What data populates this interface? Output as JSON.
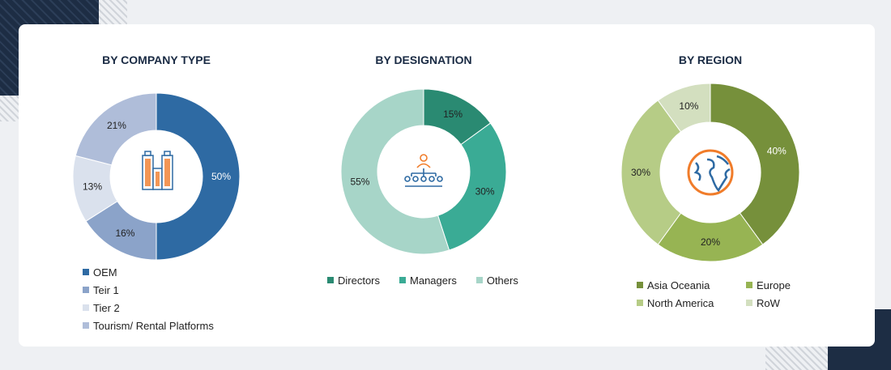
{
  "chart_data": [
    {
      "type": "pie",
      "title": "BY COMPANY TYPE",
      "icon": "buildings-icon",
      "categories": [
        "OEM",
        "Teir 1",
        "Tier 2",
        "Tourism/ Rental Platforms"
      ],
      "values": [
        50,
        16,
        13,
        21
      ],
      "labels": [
        "50%",
        "16%",
        "13%",
        "21%"
      ],
      "colors": [
        "#2e6aa3",
        "#8ba3c9",
        "#dae1ed",
        "#afbdd9"
      ],
      "label_colors": [
        "#ffffff",
        "#222222",
        "#222222",
        "#222222"
      ],
      "legend": "bottom"
    },
    {
      "type": "pie",
      "title": "BY DESIGNATION",
      "icon": "org-chart-people-icon",
      "categories": [
        "Directors",
        "Managers",
        "Others"
      ],
      "values": [
        15,
        30,
        55
      ],
      "labels": [
        "15%",
        "30%",
        "55%"
      ],
      "colors": [
        "#2a8a72",
        "#3aab95",
        "#a7d5c8"
      ],
      "label_colors": [
        "#222222",
        "#222222",
        "#222222"
      ],
      "legend": "bottom"
    },
    {
      "type": "pie",
      "title": "BY REGION",
      "icon": "globe-icon",
      "categories": [
        "Asia Oceania",
        "Europe",
        "North America",
        "RoW"
      ],
      "values": [
        40,
        20,
        30,
        10
      ],
      "labels": [
        "40%",
        "20%",
        "30%",
        "10%"
      ],
      "colors": [
        "#76903b",
        "#97b453",
        "#b6cc86",
        "#d3dfbf"
      ],
      "label_colors": [
        "#ffffff",
        "#222222",
        "#222222",
        "#222222"
      ],
      "legend": "bottom"
    }
  ]
}
